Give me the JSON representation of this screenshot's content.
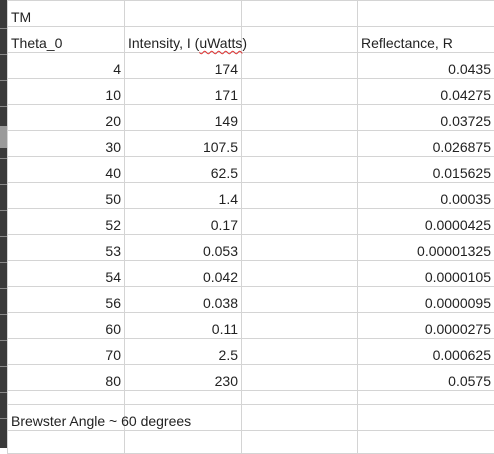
{
  "sheet": {
    "title": "TM",
    "headers": {
      "angle": "Theta_0",
      "intensity_prefix": "Intensity, I (",
      "intensity_unit": "uWatts",
      "intensity_suffix": ")",
      "reflectance": "Reflectance, R"
    },
    "rows": [
      {
        "angle": "4",
        "intensity": "174",
        "reflectance": "0.0435"
      },
      {
        "angle": "10",
        "intensity": "171",
        "reflectance": "0.04275"
      },
      {
        "angle": "20",
        "intensity": "149",
        "reflectance": "0.03725"
      },
      {
        "angle": "30",
        "intensity": "107.5",
        "reflectance": "0.026875"
      },
      {
        "angle": "40",
        "intensity": "62.5",
        "reflectance": "0.015625"
      },
      {
        "angle": "50",
        "intensity": "1.4",
        "reflectance": "0.00035"
      },
      {
        "angle": "52",
        "intensity": "0.17",
        "reflectance": "0.0000425"
      },
      {
        "angle": "53",
        "intensity": "0.053",
        "reflectance": "0.00001325"
      },
      {
        "angle": "54",
        "intensity": "0.042",
        "reflectance": "0.0000105"
      },
      {
        "angle": "56",
        "intensity": "0.038",
        "reflectance": "0.0000095"
      },
      {
        "angle": "60",
        "intensity": "0.11",
        "reflectance": "0.0000275"
      },
      {
        "angle": "70",
        "intensity": "2.5",
        "reflectance": "0.000625"
      },
      {
        "angle": "80",
        "intensity": "230",
        "reflectance": "0.0575"
      }
    ],
    "note": "Brewster Angle ~ 60 degrees"
  },
  "colors": {
    "grid_line": "#d4d4d4",
    "gutter": "#3a3a3a",
    "spellcheck_underline": "#e03030"
  }
}
